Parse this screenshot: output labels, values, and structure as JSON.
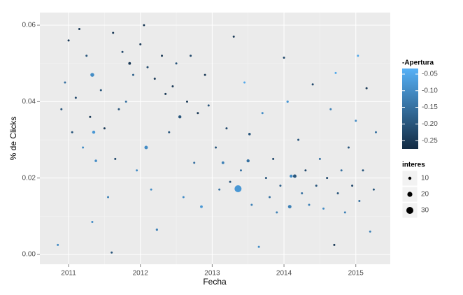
{
  "chart_data": {
    "type": "scatter",
    "x_label": "Fecha",
    "y_label": "% de Clicks",
    "xlim": [
      2010.6,
      2015.48
    ],
    "xticks": [
      2011,
      2012,
      2013,
      2014,
      2015
    ],
    "ylim": [
      -0.00256,
      0.0633
    ],
    "yticks": [
      {
        "value": 0,
        "label": "0.00"
      },
      {
        "value": 0.02,
        "label": "0.02"
      },
      {
        "value": 0.04,
        "label": "0.04"
      },
      {
        "value": 0.06,
        "label": "0.06"
      }
    ],
    "grid": true,
    "color_legend": {
      "title": "-Apertura",
      "lim": [
        -0.275,
        -0.0332
      ],
      "low_color": "#132B43",
      "high_color": "#56B1F7",
      "ticks": [
        {
          "value": -0.05,
          "label": "-0.05"
        },
        {
          "value": -0.1,
          "label": "-0.10"
        },
        {
          "value": -0.15,
          "label": "-0.15"
        },
        {
          "value": -0.2,
          "label": "-0.20"
        },
        {
          "value": -0.25,
          "label": "-0.25"
        }
      ]
    },
    "size_legend": {
      "title": "interes",
      "breaks": [
        10,
        20,
        30
      ]
    },
    "points": [
      [
        2010.85,
        0.0025,
        5,
        -0.1
      ],
      [
        2010.9,
        0.038,
        5,
        -0.2
      ],
      [
        2010.95,
        0.045,
        5,
        -0.15
      ],
      [
        2011.0,
        0.056,
        5,
        -0.25
      ],
      [
        2011.05,
        0.032,
        5,
        -0.2
      ],
      [
        2011.1,
        0.041,
        5,
        -0.22
      ],
      [
        2011.15,
        0.059,
        5,
        -0.25
      ],
      [
        2011.2,
        0.028,
        5,
        -0.1
      ],
      [
        2011.25,
        0.052,
        5,
        -0.2
      ],
      [
        2011.3,
        0.036,
        5,
        -0.25
      ],
      [
        2011.33,
        0.047,
        14,
        -0.1
      ],
      [
        2011.35,
        0.032,
        10,
        -0.08
      ],
      [
        2011.38,
        0.0245,
        7,
        -0.1
      ],
      [
        2011.33,
        0.0085,
        5,
        -0.1
      ],
      [
        2011.45,
        0.043,
        5,
        -0.2
      ],
      [
        2011.5,
        0.033,
        5,
        -0.25
      ],
      [
        2011.55,
        0.015,
        5,
        -0.12
      ],
      [
        2011.6,
        0.0005,
        5,
        -0.2
      ],
      [
        2011.62,
        0.058,
        5,
        -0.25
      ],
      [
        2011.65,
        0.025,
        5,
        -0.22
      ],
      [
        2011.7,
        0.038,
        5,
        -0.2
      ],
      [
        2011.75,
        0.053,
        5,
        -0.22
      ],
      [
        2011.8,
        0.04,
        5,
        -0.15
      ],
      [
        2011.85,
        0.05,
        8,
        -0.25
      ],
      [
        2011.9,
        0.047,
        5,
        -0.18
      ],
      [
        2011.95,
        0.022,
        5,
        -0.1
      ],
      [
        2012.0,
        0.055,
        5,
        -0.25
      ],
      [
        2012.05,
        0.06,
        5,
        -0.25
      ],
      [
        2012.08,
        0.028,
        12,
        -0.1
      ],
      [
        2012.1,
        0.049,
        5,
        -0.22
      ],
      [
        2012.15,
        0.017,
        5,
        -0.1
      ],
      [
        2012.2,
        0.046,
        5,
        -0.25
      ],
      [
        2012.23,
        0.0065,
        6,
        -0.12
      ],
      [
        2012.3,
        0.052,
        5,
        -0.25
      ],
      [
        2012.35,
        0.042,
        5,
        -0.25
      ],
      [
        2012.4,
        0.032,
        5,
        -0.2
      ],
      [
        2012.45,
        0.044,
        5,
        -0.25
      ],
      [
        2012.5,
        0.05,
        5,
        -0.2
      ],
      [
        2012.55,
        0.036,
        10,
        -0.2
      ],
      [
        2012.6,
        0.015,
        5,
        -0.1
      ],
      [
        2012.65,
        0.04,
        5,
        -0.25
      ],
      [
        2012.7,
        0.052,
        5,
        -0.22
      ],
      [
        2012.75,
        0.024,
        5,
        -0.15
      ],
      [
        2012.8,
        0.037,
        5,
        -0.25
      ],
      [
        2012.85,
        0.0125,
        8,
        -0.08
      ],
      [
        2012.9,
        0.047,
        5,
        -0.25
      ],
      [
        2012.95,
        0.039,
        5,
        -0.2
      ],
      [
        2013.05,
        0.028,
        5,
        -0.2
      ],
      [
        2013.1,
        0.017,
        5,
        -0.15
      ],
      [
        2013.15,
        0.024,
        8,
        -0.12
      ],
      [
        2013.2,
        0.033,
        5,
        -0.22
      ],
      [
        2013.25,
        0.019,
        5,
        -0.2
      ],
      [
        2013.3,
        0.057,
        5,
        -0.25
      ],
      [
        2013.36,
        0.0172,
        30,
        -0.08
      ],
      [
        2013.4,
        0.022,
        5,
        -0.15
      ],
      [
        2013.45,
        0.045,
        5,
        -0.05
      ],
      [
        2013.5,
        0.0245,
        10,
        -0.15
      ],
      [
        2013.52,
        0.0315,
        7,
        -0.2
      ],
      [
        2013.55,
        0.013,
        5,
        -0.12
      ],
      [
        2013.65,
        0.002,
        5,
        -0.1
      ],
      [
        2013.7,
        0.037,
        5,
        -0.1
      ],
      [
        2013.75,
        0.02,
        5,
        -0.2
      ],
      [
        2013.8,
        0.015,
        5,
        -0.15
      ],
      [
        2013.85,
        0.025,
        5,
        -0.22
      ],
      [
        2013.9,
        0.011,
        5,
        -0.12
      ],
      [
        2013.95,
        0.018,
        5,
        -0.18
      ],
      [
        2014.0,
        0.0515,
        5,
        -0.22
      ],
      [
        2014.05,
        0.04,
        6,
        -0.08
      ],
      [
        2014.08,
        0.0125,
        12,
        -0.12
      ],
      [
        2014.1,
        0.0205,
        10,
        -0.1
      ],
      [
        2014.15,
        0.0205,
        12,
        -0.2
      ],
      [
        2014.2,
        0.03,
        5,
        -0.2
      ],
      [
        2014.25,
        0.016,
        5,
        -0.15
      ],
      [
        2014.3,
        0.022,
        5,
        -0.22
      ],
      [
        2014.35,
        0.013,
        5,
        -0.12
      ],
      [
        2014.4,
        0.0445,
        5,
        -0.22
      ],
      [
        2014.45,
        0.018,
        5,
        -0.2
      ],
      [
        2014.5,
        0.025,
        5,
        -0.15
      ],
      [
        2014.55,
        0.012,
        5,
        -0.1
      ],
      [
        2014.6,
        0.02,
        5,
        -0.22
      ],
      [
        2014.65,
        0.038,
        5,
        -0.12
      ],
      [
        2014.7,
        0.0025,
        5,
        -0.25
      ],
      [
        2014.72,
        0.0475,
        5,
        -0.05
      ],
      [
        2014.75,
        0.016,
        5,
        -0.2
      ],
      [
        2014.8,
        0.022,
        5,
        -0.15
      ],
      [
        2014.85,
        0.011,
        5,
        -0.12
      ],
      [
        2014.9,
        0.028,
        5,
        -0.2
      ],
      [
        2014.95,
        0.018,
        5,
        -0.22
      ],
      [
        2015.0,
        0.035,
        5,
        -0.1
      ],
      [
        2015.05,
        0.014,
        5,
        -0.15
      ],
      [
        2015.03,
        0.052,
        5,
        -0.05
      ],
      [
        2015.1,
        0.022,
        5,
        -0.2
      ],
      [
        2015.15,
        0.0435,
        5,
        -0.25
      ],
      [
        2015.2,
        0.006,
        5,
        -0.12
      ],
      [
        2015.25,
        0.017,
        5,
        -0.2
      ],
      [
        2015.28,
        0.032,
        5,
        -0.15
      ]
    ]
  }
}
